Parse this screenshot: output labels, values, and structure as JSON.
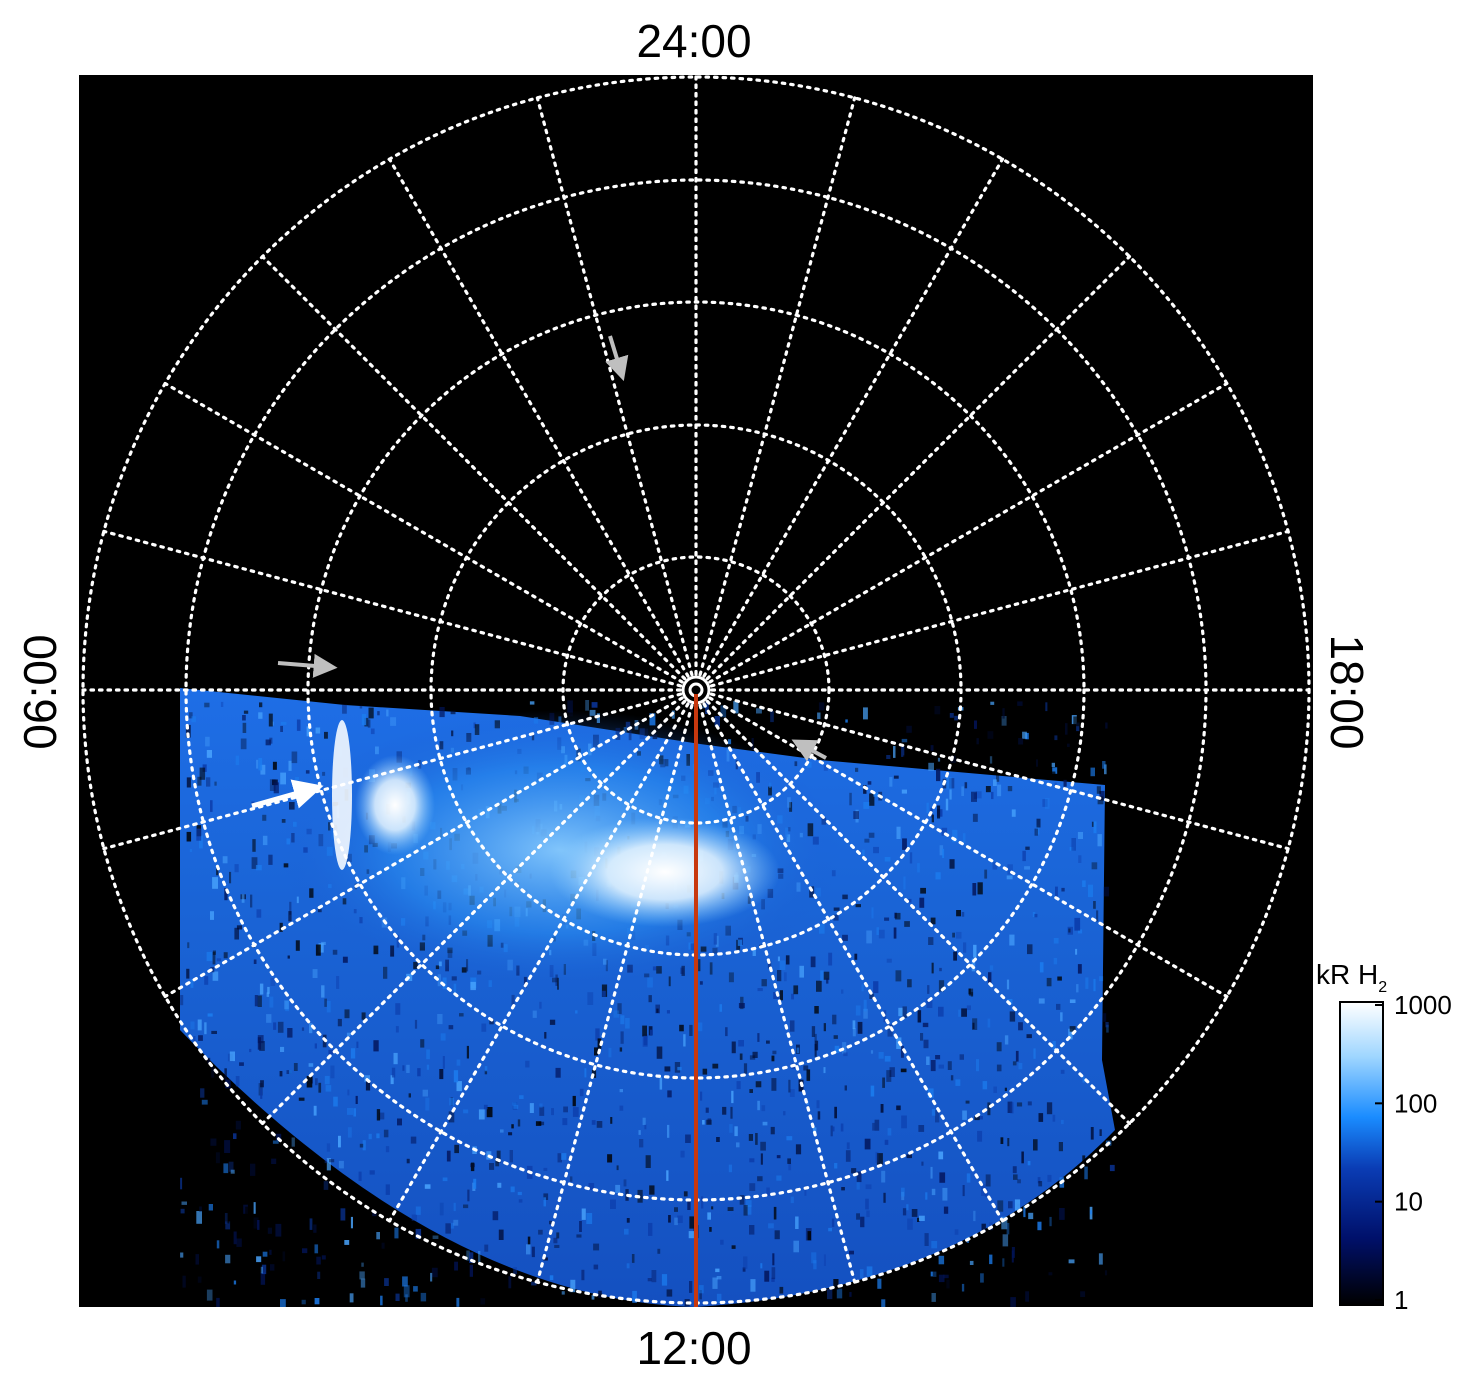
{
  "local_time_labels": {
    "top": "24:00",
    "bottom": "12:00",
    "left": "06:00",
    "right": "18:00"
  },
  "colorbar": {
    "title": "kR H",
    "title_subscript": "2",
    "scale": "log",
    "range": [
      1,
      1000
    ],
    "ticks": [
      "1000",
      "100",
      "10",
      "1"
    ],
    "colors": [
      "#000000",
      "#00106a",
      "#0a3cb4",
      "#1a8cff",
      "#9fd6ff",
      "#ffffff"
    ]
  },
  "image": {
    "background_color": "#000000",
    "grid_style": "white dotted",
    "grid_meridian_count": 24,
    "grid_colatitude_rings": 5,
    "noon_meridian_line_color": "#c8380e",
    "arrow_color_white": "#ffffff",
    "arrow_color_grey": "#bfbfbf",
    "arrow_count": 4
  }
}
